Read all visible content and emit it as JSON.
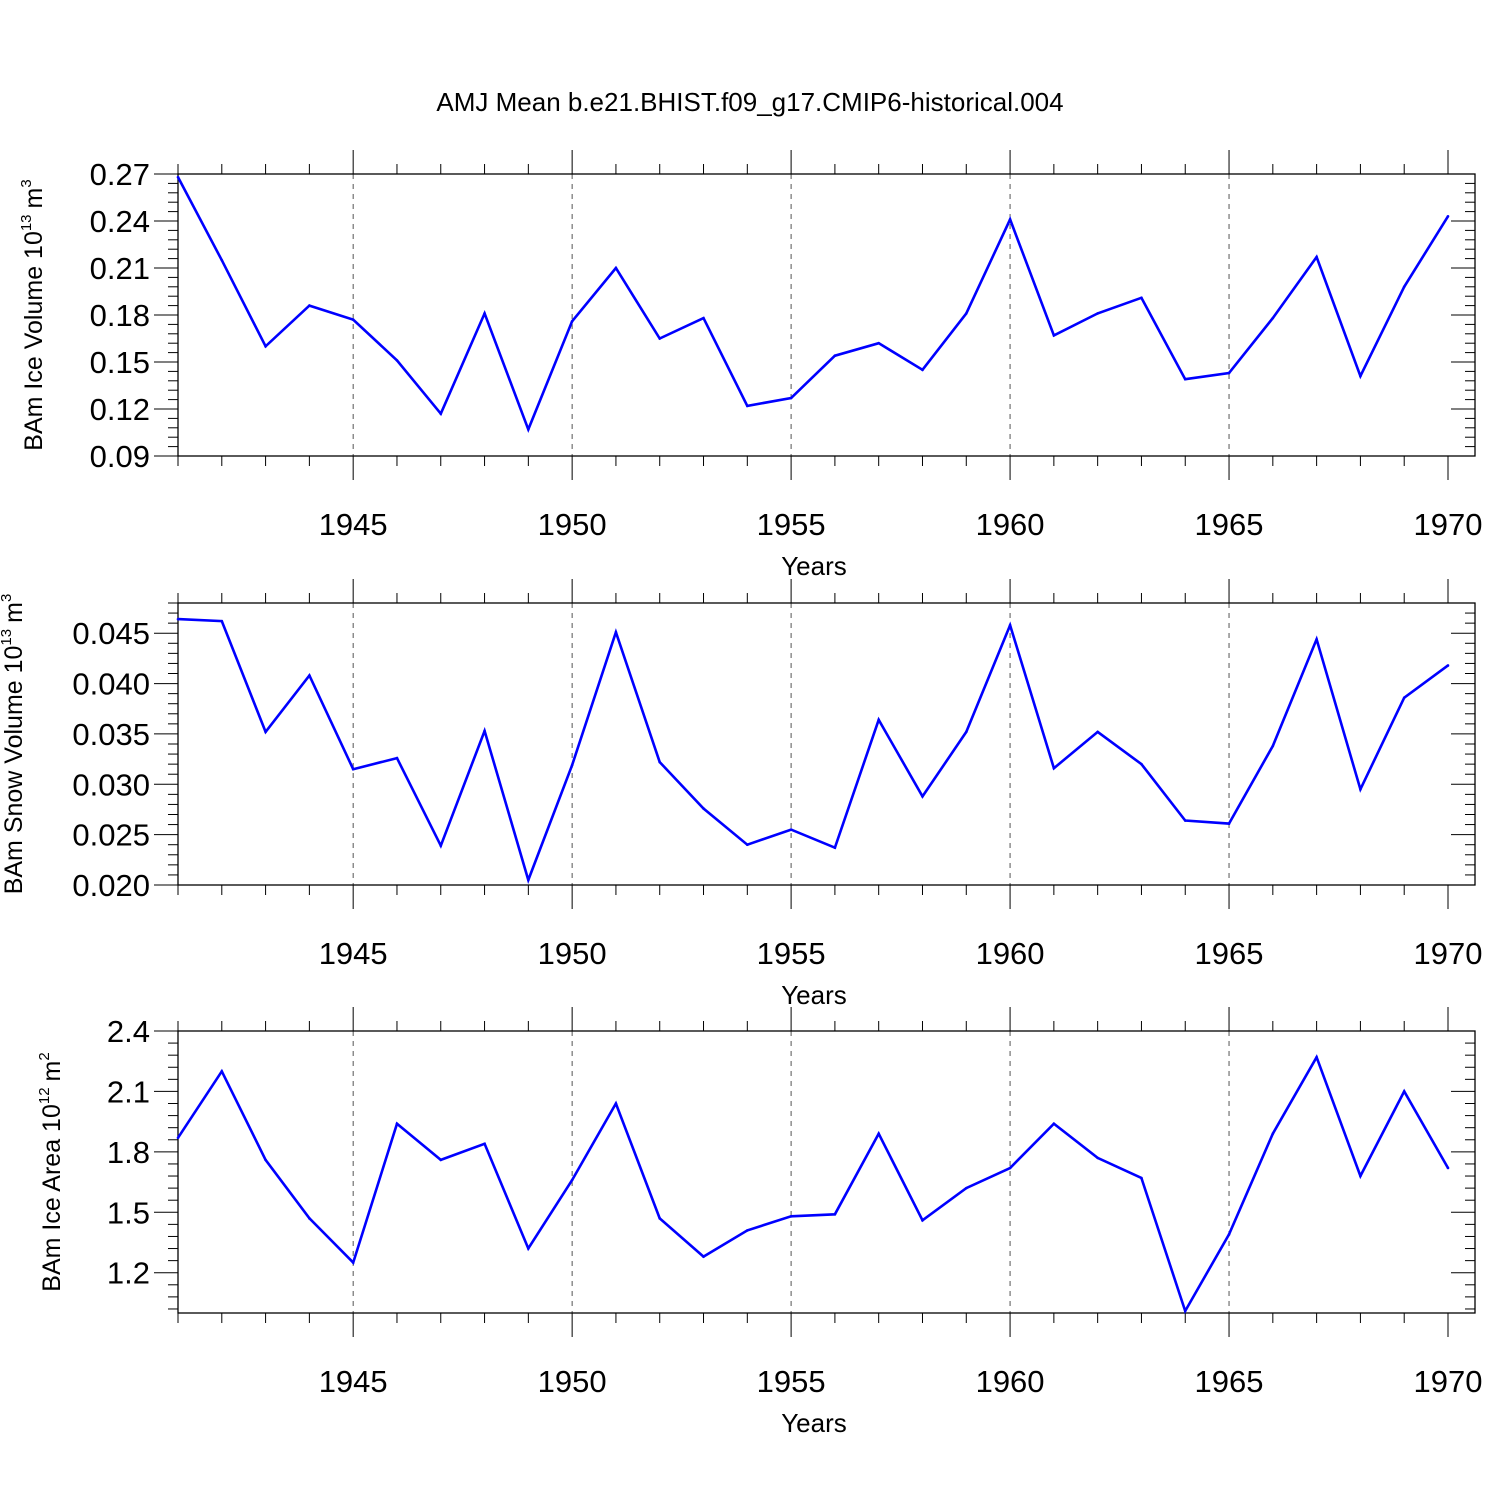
{
  "chart_data": [
    {
      "type": "line",
      "title": "AMJ Mean b.e21.BHIST.f09_g17.CMIP6-historical.004",
      "ylabel": "BAm Ice Volume 10",
      "ylabel_exp": "13",
      "ylabel_unit": "m",
      "ylabel_unit_exp": "3",
      "xlabel": "Years",
      "xlim": [
        1941,
        1970
      ],
      "ylim": [
        0.09,
        0.27
      ],
      "yticks": [
        0.09,
        0.12,
        0.15,
        0.18,
        0.21,
        0.24,
        0.27
      ],
      "ytick_labels": [
        "0.09",
        "0.12",
        "0.15",
        "0.18",
        "0.21",
        "0.24",
        "0.27"
      ],
      "xticks": [
        1945,
        1950,
        1955,
        1960,
        1965,
        1970
      ],
      "xtick_labels": [
        "1945",
        "1950",
        "1955",
        "1960",
        "1965",
        "1970"
      ],
      "line_color": "#0000ff",
      "x": [
        1941,
        1942,
        1943,
        1944,
        1945,
        1946,
        1947,
        1948,
        1949,
        1950,
        1951,
        1952,
        1953,
        1954,
        1955,
        1956,
        1957,
        1958,
        1959,
        1960,
        1961,
        1962,
        1963,
        1964,
        1965,
        1966,
        1967,
        1968,
        1969,
        1970
      ],
      "values": [
        0.268,
        0.215,
        0.16,
        0.186,
        0.177,
        0.151,
        0.117,
        0.181,
        0.107,
        0.176,
        0.21,
        0.165,
        0.178,
        0.122,
        0.127,
        0.154,
        0.162,
        0.145,
        0.181,
        0.241,
        0.167,
        0.181,
        0.191,
        0.139,
        0.143,
        0.178,
        0.217,
        0.141,
        0.198,
        0.243
      ]
    },
    {
      "type": "line",
      "ylabel": "BAm Snow Volume 10",
      "ylabel_exp": "13",
      "ylabel_unit": "m",
      "ylabel_unit_exp": "3",
      "xlabel": "Years",
      "xlim": [
        1941,
        1970
      ],
      "ylim": [
        0.02,
        0.048
      ],
      "yticks": [
        0.02,
        0.025,
        0.03,
        0.035,
        0.04,
        0.045
      ],
      "ytick_labels": [
        "0.020",
        "0.025",
        "0.030",
        "0.035",
        "0.040",
        "0.045"
      ],
      "xticks": [
        1945,
        1950,
        1955,
        1960,
        1965,
        1970
      ],
      "xtick_labels": [
        "1945",
        "1950",
        "1955",
        "1960",
        "1965",
        "1970"
      ],
      "line_color": "#0000ff",
      "x": [
        1941,
        1942,
        1943,
        1944,
        1945,
        1946,
        1947,
        1948,
        1949,
        1950,
        1951,
        1952,
        1953,
        1954,
        1955,
        1956,
        1957,
        1958,
        1959,
        1960,
        1961,
        1962,
        1963,
        1964,
        1965,
        1966,
        1967,
        1968,
        1969,
        1970
      ],
      "values": [
        0.0464,
        0.0462,
        0.0352,
        0.0408,
        0.0315,
        0.0326,
        0.0239,
        0.0353,
        0.0205,
        0.0319,
        0.0451,
        0.0322,
        0.0276,
        0.024,
        0.0255,
        0.0237,
        0.0364,
        0.0288,
        0.0352,
        0.0458,
        0.0316,
        0.0352,
        0.032,
        0.0264,
        0.0261,
        0.0338,
        0.0444,
        0.0295,
        0.0386,
        0.0418
      ]
    },
    {
      "type": "line",
      "ylabel": "BAm Ice Area 10",
      "ylabel_exp": "12",
      "ylabel_unit": "m",
      "ylabel_unit_exp": "2",
      "xlabel": "Years",
      "xlim": [
        1941,
        1970
      ],
      "ylim": [
        1.0,
        2.4
      ],
      "yticks": [
        1.2,
        1.5,
        1.8,
        2.1,
        2.4
      ],
      "ytick_labels": [
        "1.2",
        "1.5",
        "1.8",
        "2.1",
        "2.4"
      ],
      "xticks": [
        1945,
        1950,
        1955,
        1960,
        1965,
        1970
      ],
      "xtick_labels": [
        "1945",
        "1950",
        "1955",
        "1960",
        "1965",
        "1970"
      ],
      "line_color": "#0000ff",
      "x": [
        1941,
        1942,
        1943,
        1944,
        1945,
        1946,
        1947,
        1948,
        1949,
        1950,
        1951,
        1952,
        1953,
        1954,
        1955,
        1956,
        1957,
        1958,
        1959,
        1960,
        1961,
        1962,
        1963,
        1964,
        1965,
        1966,
        1967,
        1968,
        1969,
        1970
      ],
      "values": [
        1.87,
        2.2,
        1.76,
        1.47,
        1.25,
        1.94,
        1.76,
        1.84,
        1.32,
        1.66,
        2.04,
        1.47,
        1.28,
        1.41,
        1.48,
        1.49,
        1.89,
        1.46,
        1.62,
        1.72,
        1.94,
        1.77,
        1.67,
        1.01,
        1.39,
        1.89,
        2.27,
        1.68,
        2.1,
        1.72
      ]
    }
  ]
}
